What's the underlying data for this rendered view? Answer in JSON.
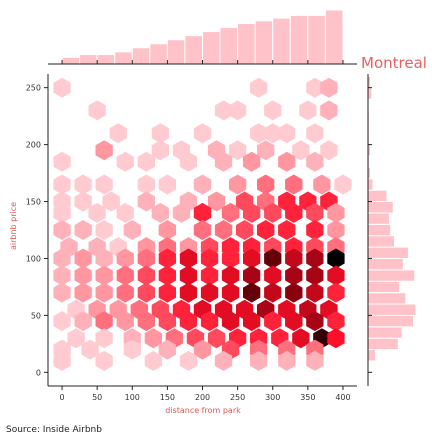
{
  "chart_data": {
    "type": "hexbin-jointplot",
    "city": "Montreal",
    "source": "Source: Inside Airbnb",
    "xlabel": "distance from park",
    "ylabel": "airbnb price",
    "xlim": [
      -20,
      420
    ],
    "ylim": [
      -12,
      262
    ],
    "x_ticks": [
      0,
      50,
      100,
      150,
      200,
      250,
      300,
      350,
      400
    ],
    "y_ticks": [
      0,
      50,
      100,
      150,
      200,
      250
    ],
    "colors": {
      "low": "#ffe6ea",
      "high": "#000000",
      "mid": "#ff0f2a",
      "hist": "#ffc2c9",
      "hist_edge": "#ffffff"
    },
    "x_hist": {
      "bins": [
        [
          0,
          25,
          0.05
        ],
        [
          25,
          50,
          0.07
        ],
        [
          50,
          75,
          0.07
        ],
        [
          75,
          100,
          0.09
        ],
        [
          100,
          125,
          0.12
        ],
        [
          125,
          150,
          0.15
        ],
        [
          150,
          175,
          0.18
        ],
        [
          175,
          200,
          0.21
        ],
        [
          200,
          225,
          0.24
        ],
        [
          225,
          250,
          0.27
        ],
        [
          250,
          275,
          0.3
        ],
        [
          275,
          300,
          0.32
        ],
        [
          300,
          325,
          0.34
        ],
        [
          325,
          350,
          0.36
        ],
        [
          350,
          375,
          0.36
        ],
        [
          375,
          400,
          0.4
        ]
      ]
    },
    "y_hist": {
      "bins": [
        [
          10,
          20,
          0.06
        ],
        [
          20,
          30,
          0.24
        ],
        [
          30,
          40,
          0.27
        ],
        [
          40,
          50,
          0.36
        ],
        [
          50,
          60,
          0.38
        ],
        [
          60,
          70,
          0.3
        ],
        [
          70,
          80,
          0.25
        ],
        [
          80,
          90,
          0.37
        ],
        [
          90,
          100,
          0.28
        ],
        [
          100,
          110,
          0.32
        ],
        [
          110,
          120,
          0.21
        ],
        [
          120,
          130,
          0.18
        ],
        [
          130,
          140,
          0.17
        ],
        [
          140,
          150,
          0.2
        ],
        [
          150,
          160,
          0.15
        ],
        [
          160,
          170,
          0.04
        ],
        [
          170,
          180,
          0.02
        ],
        [
          180,
          190,
          0.01
        ],
        [
          190,
          200,
          0.02
        ],
        [
          200,
          210,
          0.01
        ],
        [
          210,
          220,
          0.01
        ],
        [
          220,
          230,
          0.01
        ],
        [
          240,
          250,
          0.03
        ],
        [
          250,
          260,
          0.02
        ]
      ]
    },
    "hexbins": [
      [
        0,
        250,
        0.1
      ],
      [
        280,
        250,
        0.1
      ],
      [
        360,
        250,
        0.1
      ],
      [
        380,
        250,
        0.2
      ],
      [
        50,
        230,
        0.1
      ],
      [
        230,
        230,
        0.1
      ],
      [
        250,
        230,
        0.1
      ],
      [
        300,
        230,
        0.1
      ],
      [
        350,
        230,
        0.1
      ],
      [
        380,
        230,
        0.2
      ],
      [
        80,
        210,
        0.1
      ],
      [
        140,
        210,
        0.1
      ],
      [
        200,
        210,
        0.1
      ],
      [
        280,
        210,
        0.1
      ],
      [
        300,
        210,
        0.1
      ],
      [
        320,
        210,
        0.1
      ],
      [
        360,
        210,
        0.1
      ],
      [
        60,
        195,
        0.3
      ],
      [
        140,
        195,
        0.1
      ],
      [
        170,
        195,
        0.1
      ],
      [
        220,
        195,
        0.2
      ],
      [
        250,
        195,
        0.1
      ],
      [
        290,
        195,
        0.2
      ],
      [
        340,
        195,
        0.1
      ],
      [
        380,
        195,
        0.1
      ],
      [
        0,
        185,
        0.1
      ],
      [
        90,
        185,
        0.1
      ],
      [
        120,
        185,
        0.1
      ],
      [
        180,
        185,
        0.1
      ],
      [
        230,
        185,
        0.2
      ],
      [
        270,
        185,
        0.3
      ],
      [
        320,
        185,
        0.3
      ],
      [
        360,
        185,
        0.2
      ],
      [
        0,
        165,
        0.1
      ],
      [
        30,
        165,
        0.1
      ],
      [
        60,
        165,
        0.1
      ],
      [
        120,
        165,
        0.1
      ],
      [
        150,
        165,
        0.1
      ],
      [
        200,
        165,
        0.2
      ],
      [
        250,
        165,
        0.3
      ],
      [
        290,
        165,
        0.4
      ],
      [
        330,
        165,
        0.4
      ],
      [
        370,
        165,
        0.3
      ],
      [
        400,
        165,
        0.1
      ],
      [
        0,
        150,
        0.1
      ],
      [
        30,
        150,
        0.1
      ],
      [
        70,
        150,
        0.1
      ],
      [
        120,
        150,
        0.2
      ],
      [
        180,
        150,
        0.2
      ],
      [
        220,
        150,
        0.3
      ],
      [
        260,
        150,
        0.5
      ],
      [
        290,
        150,
        0.4
      ],
      [
        320,
        150,
        0.6
      ],
      [
        350,
        150,
        0.6
      ],
      [
        380,
        150,
        0.6
      ],
      [
        0,
        140,
        0.1
      ],
      [
        50,
        140,
        0.1
      ],
      [
        90,
        140,
        0.1
      ],
      [
        140,
        140,
        0.2
      ],
      [
        170,
        140,
        0.2
      ],
      [
        200,
        140,
        0.6
      ],
      [
        240,
        140,
        0.4
      ],
      [
        270,
        140,
        0.5
      ],
      [
        300,
        140,
        0.5
      ],
      [
        330,
        140,
        0.6
      ],
      [
        360,
        140,
        0.5
      ],
      [
        390,
        140,
        0.3
      ],
      [
        0,
        125,
        0.2
      ],
      [
        30,
        125,
        0.2
      ],
      [
        60,
        125,
        0.1
      ],
      [
        100,
        125,
        0.2
      ],
      [
        150,
        125,
        0.3
      ],
      [
        200,
        125,
        0.4
      ],
      [
        230,
        125,
        0.4
      ],
      [
        260,
        125,
        0.5
      ],
      [
        290,
        125,
        0.6
      ],
      [
        320,
        125,
        0.6
      ],
      [
        360,
        125,
        0.6
      ],
      [
        390,
        125,
        0.3
      ],
      [
        10,
        110,
        0.2
      ],
      [
        50,
        110,
        0.2
      ],
      [
        80,
        110,
        0.1
      ],
      [
        120,
        110,
        0.3
      ],
      [
        150,
        110,
        0.4
      ],
      [
        180,
        110,
        0.3
      ],
      [
        210,
        110,
        0.5
      ],
      [
        240,
        110,
        0.6
      ],
      [
        270,
        110,
        0.6
      ],
      [
        300,
        110,
        0.5
      ],
      [
        330,
        110,
        0.6
      ],
      [
        360,
        110,
        0.5
      ],
      [
        390,
        110,
        0.4
      ],
      [
        0,
        100,
        0.2
      ],
      [
        30,
        100,
        0.3
      ],
      [
        60,
        100,
        0.2
      ],
      [
        90,
        100,
        0.3
      ],
      [
        120,
        100,
        0.4
      ],
      [
        150,
        100,
        0.6
      ],
      [
        180,
        100,
        0.7
      ],
      [
        210,
        100,
        0.6
      ],
      [
        240,
        100,
        0.6
      ],
      [
        270,
        100,
        0.7
      ],
      [
        300,
        100,
        0.9
      ],
      [
        330,
        100,
        0.75
      ],
      [
        360,
        100,
        0.8
      ],
      [
        390,
        100,
        1.0
      ],
      [
        0,
        85,
        0.2
      ],
      [
        30,
        85,
        0.3
      ],
      [
        60,
        85,
        0.3
      ],
      [
        90,
        85,
        0.4
      ],
      [
        120,
        85,
        0.5
      ],
      [
        150,
        85,
        0.6
      ],
      [
        180,
        85,
        0.7
      ],
      [
        210,
        85,
        0.6
      ],
      [
        240,
        85,
        0.7
      ],
      [
        270,
        85,
        0.8
      ],
      [
        300,
        85,
        0.7
      ],
      [
        330,
        85,
        0.8
      ],
      [
        360,
        85,
        0.8
      ],
      [
        390,
        85,
        0.7
      ],
      [
        0,
        70,
        0.2
      ],
      [
        30,
        70,
        0.3
      ],
      [
        60,
        70,
        0.3
      ],
      [
        90,
        70,
        0.4
      ],
      [
        120,
        70,
        0.5
      ],
      [
        150,
        70,
        0.6
      ],
      [
        180,
        70,
        0.7
      ],
      [
        210,
        70,
        0.7
      ],
      [
        240,
        70,
        0.7
      ],
      [
        270,
        70,
        0.9
      ],
      [
        300,
        70,
        0.75
      ],
      [
        330,
        70,
        0.85
      ],
      [
        360,
        70,
        0.75
      ],
      [
        390,
        70,
        0.6
      ],
      [
        20,
        55,
        0.1
      ],
      [
        50,
        55,
        0.3
      ],
      [
        80,
        55,
        0.3
      ],
      [
        110,
        55,
        0.4
      ],
      [
        140,
        55,
        0.5
      ],
      [
        170,
        55,
        0.6
      ],
      [
        200,
        55,
        0.7
      ],
      [
        230,
        55,
        0.7
      ],
      [
        260,
        55,
        0.7
      ],
      [
        290,
        55,
        0.8
      ],
      [
        320,
        55,
        0.7
      ],
      [
        350,
        55,
        0.75
      ],
      [
        380,
        55,
        0.7
      ],
      [
        0,
        45,
        0.1
      ],
      [
        30,
        45,
        0.2
      ],
      [
        60,
        45,
        0.4
      ],
      [
        90,
        45,
        0.3
      ],
      [
        120,
        45,
        0.4
      ],
      [
        150,
        45,
        0.5
      ],
      [
        180,
        45,
        0.6
      ],
      [
        210,
        45,
        0.6
      ],
      [
        240,
        45,
        0.7
      ],
      [
        270,
        45,
        0.7
      ],
      [
        300,
        45,
        0.6
      ],
      [
        330,
        45,
        0.7
      ],
      [
        360,
        45,
        0.8
      ],
      [
        390,
        45,
        0.6
      ],
      [
        20,
        30,
        0.1
      ],
      [
        60,
        30,
        0.1
      ],
      [
        100,
        30,
        0.2
      ],
      [
        130,
        30,
        0.3
      ],
      [
        160,
        30,
        0.4
      ],
      [
        190,
        30,
        0.5
      ],
      [
        220,
        30,
        0.5
      ],
      [
        250,
        30,
        0.6
      ],
      [
        280,
        30,
        0.6
      ],
      [
        310,
        30,
        0.6
      ],
      [
        340,
        30,
        0.7
      ],
      [
        370,
        30,
        0.95
      ],
      [
        390,
        30,
        0.65
      ],
      [
        0,
        20,
        0.1
      ],
      [
        40,
        20,
        0.1
      ],
      [
        100,
        20,
        0.1
      ],
      [
        150,
        20,
        0.2
      ],
      [
        200,
        20,
        0.3
      ],
      [
        240,
        20,
        0.5
      ],
      [
        280,
        20,
        0.4
      ],
      [
        320,
        20,
        0.4
      ],
      [
        360,
        20,
        0.4
      ],
      [
        0,
        10,
        0.1
      ],
      [
        60,
        10,
        0.1
      ],
      [
        130,
        10,
        0.1
      ],
      [
        180,
        10,
        0.1
      ],
      [
        230,
        10,
        0.2
      ],
      [
        280,
        10,
        0.2
      ],
      [
        320,
        10,
        0.2
      ],
      [
        360,
        10,
        0.2
      ]
    ]
  }
}
